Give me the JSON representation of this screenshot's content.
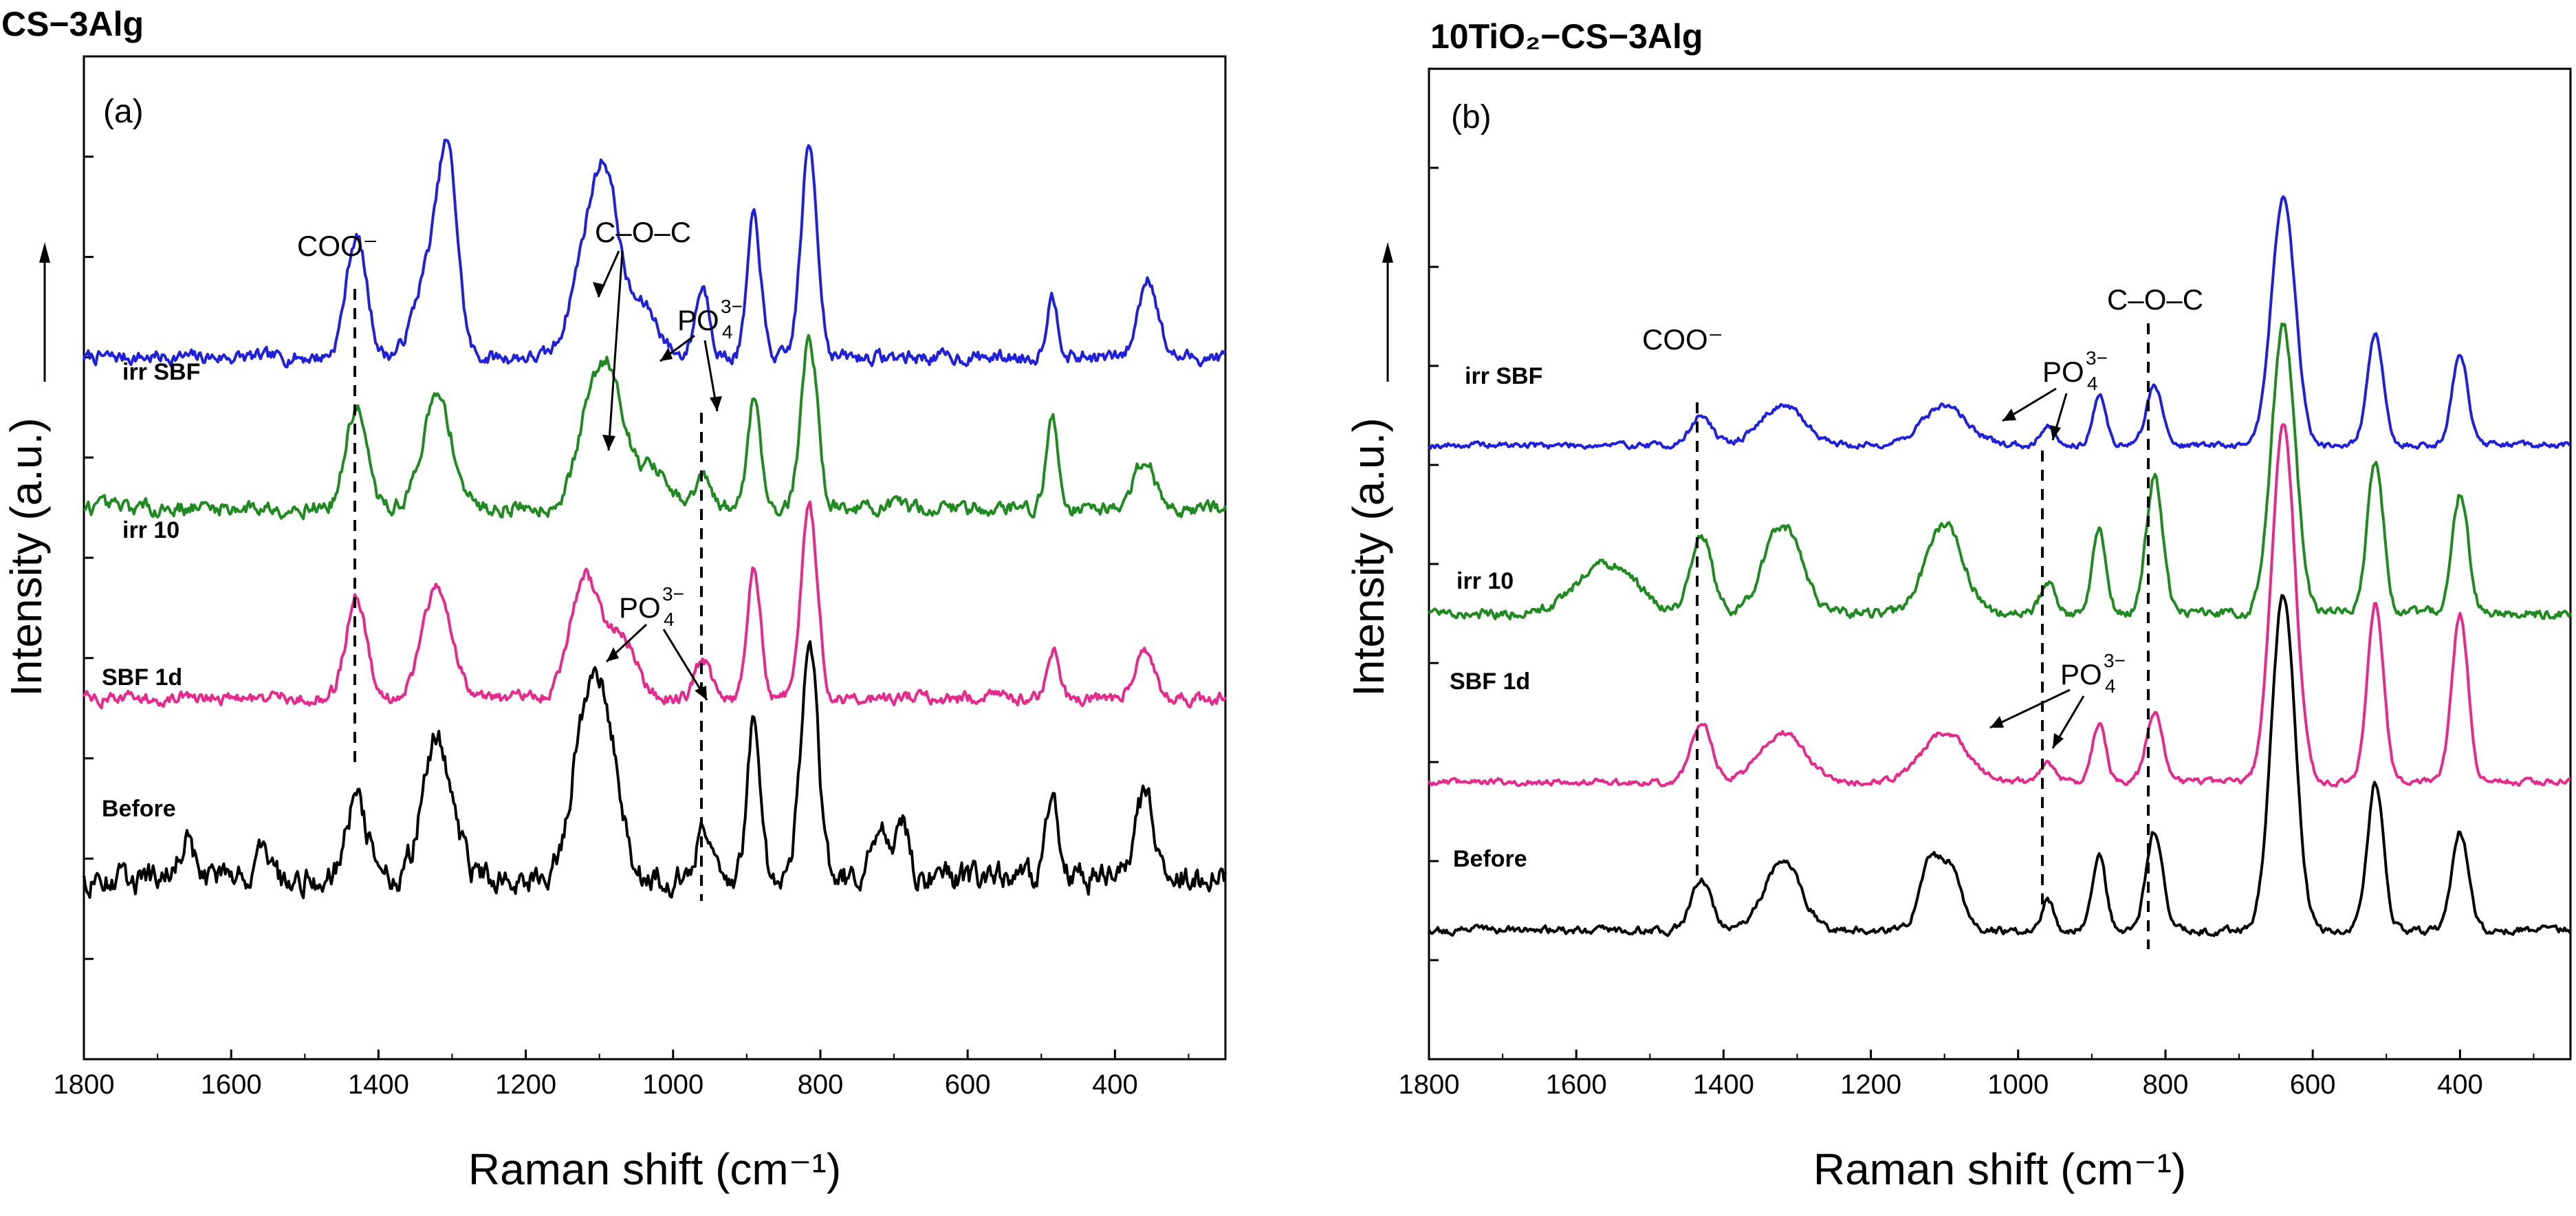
{
  "chart_data": [
    {
      "type": "line",
      "panel_title": "CS−3Alg",
      "panel_letter": "(a)",
      "xlabel": "Raman shift (cm⁻¹)",
      "ylabel": "Intensity (a.u.)",
      "xlim": [
        1800,
        250
      ],
      "xticks": [
        1800,
        1600,
        1400,
        1200,
        1000,
        800,
        600,
        400
      ],
      "xtick_labels": [
        "1800",
        "1600",
        "1400",
        "1200",
        "1000",
        "800",
        "600",
        "400"
      ],
      "ylim": [
        0,
        100
      ],
      "grid": false,
      "series": [
        {
          "name": "irr SBF",
          "color": "#1f1fe0",
          "baseline": 70,
          "peaks": [
            [
              1430,
              12,
              14
            ],
            [
              1330,
              9,
              20
            ],
            [
              1305,
              17,
              13
            ],
            [
              1120,
              9,
              20
            ],
            [
              1090,
              16,
              18
            ],
            [
              1040,
              5,
              20
            ],
            [
              960,
              7,
              10
            ],
            [
              890,
              14,
              9
            ],
            [
              815,
              21,
              11
            ],
            [
              485,
              6,
              8
            ],
            [
              355,
              8,
              13
            ]
          ],
          "noise": 1.1
        },
        {
          "name": "irr 10",
          "color": "#1f8a1f",
          "baseline": 55,
          "peaks": [
            [
              1430,
              10,
              14
            ],
            [
              1320,
              11,
              20
            ],
            [
              1110,
              10,
              20
            ],
            [
              1080,
              10,
              18
            ],
            [
              1030,
              4,
              20
            ],
            [
              960,
              3,
              10
            ],
            [
              890,
              11,
              9
            ],
            [
              815,
              17,
              11
            ],
            [
              485,
              9,
              8
            ],
            [
              360,
              5,
              13
            ]
          ],
          "noise": 1.2
        },
        {
          "name": "SBF 1d",
          "color": "#e8288a",
          "baseline": 36,
          "peaks": [
            [
              1430,
              10,
              14
            ],
            [
              1320,
              11,
              20
            ],
            [
              1120,
              12,
              20
            ],
            [
              1070,
              6,
              20
            ],
            [
              960,
              4,
              10
            ],
            [
              890,
              13,
              9
            ],
            [
              815,
              19,
              11
            ],
            [
              485,
              5,
              8
            ],
            [
              360,
              5,
              13
            ]
          ],
          "noise": 1.0
        },
        {
          "name": "Before",
          "color": "#000000",
          "baseline": 18,
          "peaks": [
            [
              1660,
              4,
              10
            ],
            [
              1560,
              4,
              6
            ],
            [
              1430,
              8,
              14
            ],
            [
              1320,
              14,
              20
            ],
            [
              1120,
              14,
              20
            ],
            [
              1090,
              13,
              18
            ],
            [
              960,
              4,
              10
            ],
            [
              890,
              16,
              9
            ],
            [
              815,
              24,
              11
            ],
            [
              720,
              5,
              10
            ],
            [
              690,
              6,
              10
            ],
            [
              485,
              8,
              8
            ],
            [
              360,
              8,
              13
            ]
          ],
          "noise": 2.2
        }
      ],
      "annotations": {
        "coo": "COO⁻",
        "coc": "C–O–C",
        "po4": "PO",
        "po4_sub": "4",
        "po4_sup": "3−"
      }
    },
    {
      "type": "line",
      "panel_title": "10TiO₂−CS−3Alg",
      "panel_letter": "(b)",
      "xlabel": "Raman shift (cm⁻¹)",
      "ylabel": "Intensity (a.u.)",
      "xlim": [
        1800,
        250
      ],
      "xticks": [
        1800,
        1600,
        1400,
        1200,
        1000,
        800,
        600,
        400
      ],
      "xtick_labels": [
        "1800",
        "1600",
        "1400",
        "1200",
        "1000",
        "800",
        "600",
        "400"
      ],
      "ylim": [
        0,
        100
      ],
      "grid": false,
      "series": [
        {
          "name": "irr SBF",
          "color": "#1f1fe0",
          "baseline": 62,
          "peaks": [
            [
              1430,
              3,
              14
            ],
            [
              1320,
              4,
              30
            ],
            [
              1100,
              4,
              30
            ],
            [
              960,
              2,
              10
            ],
            [
              890,
              5,
              9
            ],
            [
              815,
              6,
              11
            ],
            [
              640,
              25,
              16
            ],
            [
              515,
              11,
              11
            ],
            [
              400,
              9,
              11
            ]
          ],
          "noise": 0.5
        },
        {
          "name": "irr 10",
          "color": "#1f8a1f",
          "baseline": 45,
          "peaks": [
            [
              1560,
              5,
              40
            ],
            [
              1430,
              8,
              14
            ],
            [
              1320,
              9,
              25
            ],
            [
              1100,
              9,
              25
            ],
            [
              960,
              3,
              10
            ],
            [
              890,
              9,
              9
            ],
            [
              815,
              14,
              11
            ],
            [
              640,
              29,
              16
            ],
            [
              515,
              15,
              11
            ],
            [
              400,
              12,
              11
            ]
          ],
          "noise": 0.8
        },
        {
          "name": "SBF 1d",
          "color": "#e8288a",
          "baseline": 28,
          "peaks": [
            [
              1430,
              6,
              14
            ],
            [
              1320,
              5,
              30
            ],
            [
              1100,
              5,
              30
            ],
            [
              960,
              2,
              10
            ],
            [
              890,
              6,
              9
            ],
            [
              815,
              7,
              11
            ],
            [
              640,
              36,
              16
            ],
            [
              515,
              18,
              11
            ],
            [
              400,
              17,
              11
            ]
          ],
          "noise": 0.5
        },
        {
          "name": "Before",
          "color": "#000000",
          "baseline": 13,
          "peaks": [
            [
              1430,
              5,
              14
            ],
            [
              1320,
              7,
              25
            ],
            [
              1120,
              7,
              14
            ],
            [
              1090,
              6,
              14
            ],
            [
              960,
              3,
              8
            ],
            [
              890,
              8,
              9
            ],
            [
              815,
              10,
              11
            ],
            [
              640,
              34,
              16
            ],
            [
              515,
              15,
              11
            ],
            [
              400,
              10,
              11
            ]
          ],
          "noise": 0.6
        }
      ],
      "annotations": {
        "coo": "COO⁻",
        "coc": "C–O–C",
        "po4": "PO",
        "po4_sub": "4",
        "po4_sup": "3−"
      }
    }
  ]
}
